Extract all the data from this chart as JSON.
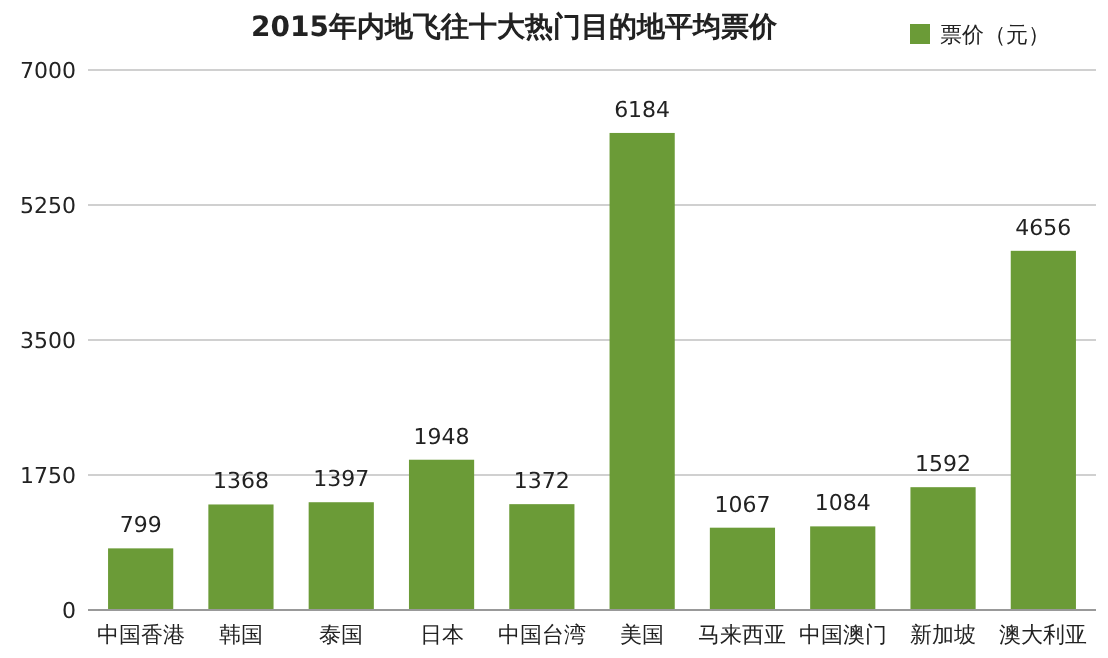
{
  "chart_data": {
    "type": "bar",
    "title": "2015年内地飞往十大热门目的地平均票价",
    "categories": [
      "中国香港",
      "韩国",
      "泰国",
      "日本",
      "中国台湾",
      "美国",
      "马来西亚",
      "中国澳门",
      "新加坡",
      "澳大利亚"
    ],
    "series": [
      {
        "name": "票价（元）",
        "color": "#6b9b37",
        "values": [
          799,
          1368,
          1397,
          1948,
          1372,
          6184,
          1067,
          1084,
          1592,
          4656
        ]
      }
    ],
    "ylim": [
      0,
      7000
    ],
    "yticks": [
      0,
      1750,
      3500,
      5250,
      7000
    ],
    "grid": "y",
    "legend": "top right",
    "data_labels": true
  }
}
